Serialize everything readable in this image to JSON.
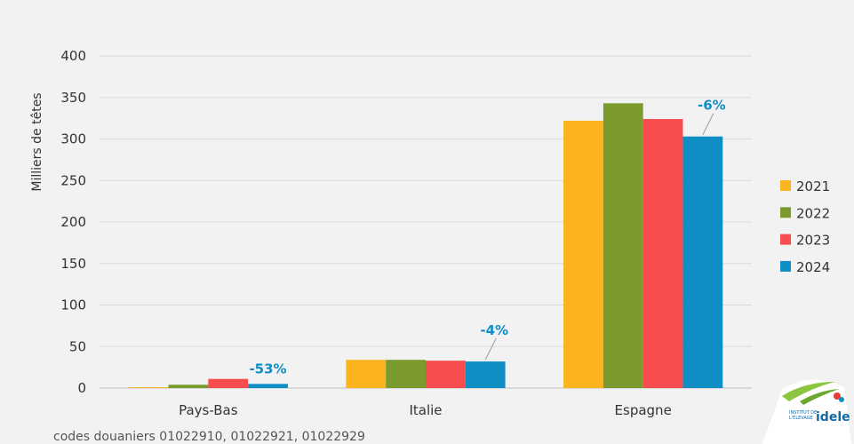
{
  "chart_data": {
    "type": "bar",
    "title": "",
    "xlabel": "",
    "ylabel": "Milliers de têtes",
    "ylim": [
      0,
      400
    ],
    "yticks": [
      0,
      50,
      100,
      150,
      200,
      250,
      300,
      350,
      400
    ],
    "grid": true,
    "legend_position": "right",
    "categories": [
      "Pays-Bas",
      "Italie",
      "Espagne"
    ],
    "series": [
      {
        "name": "2021",
        "color": "#fbb41d",
        "values": [
          1,
          34,
          322
        ]
      },
      {
        "name": "2022",
        "color": "#7a9a2e",
        "values": [
          4,
          34,
          343
        ]
      },
      {
        "name": "2023",
        "color": "#f94c4f",
        "values": [
          11,
          33,
          324
        ]
      },
      {
        "name": "2024",
        "color": "#0f8dc5",
        "values": [
          5,
          32,
          303
        ]
      }
    ],
    "annotations": [
      {
        "category": "Pays-Bas",
        "series": "2024",
        "text": "-53%",
        "color": "#0f8dc5"
      },
      {
        "category": "Italie",
        "series": "2024",
        "text": "-4%",
        "color": "#0f8dc5"
      },
      {
        "category": "Espagne",
        "series": "2024",
        "text": "-6%",
        "color": "#0f8dc5"
      }
    ]
  },
  "footnote": "codes douaniers 01022910, 01022921, 01022929",
  "logo": {
    "line1": "INSTITUT DE",
    "line2": "L'ÉLEVAGE",
    "brand": "idele"
  },
  "colors": {
    "background": "#f2f2f2",
    "grid": "#d9d9d9"
  }
}
